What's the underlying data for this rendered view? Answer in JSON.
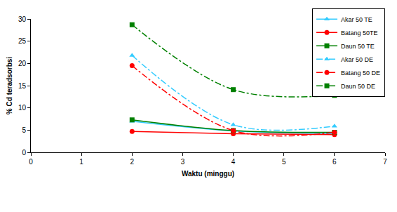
{
  "chart_data": {
    "type": "line",
    "x_label": "Waktu (minggu)",
    "y_label": "% Cd teradsorbsi",
    "xlim": [
      0,
      7
    ],
    "xticks": [
      0,
      1,
      2,
      3,
      4,
      5,
      6,
      7
    ],
    "ylim": [
      0,
      30
    ],
    "yticks": [
      0,
      5,
      10,
      15,
      20,
      25,
      30
    ],
    "grid": false,
    "legend": "top right",
    "x": [
      2,
      4,
      6
    ],
    "series": [
      {
        "name": "Akar 50 TE",
        "color": "#33ccff",
        "marker": "triangle",
        "line_style": "solid",
        "values": [
          7.0,
          4.8,
          4.2
        ]
      },
      {
        "name": "Batang 50TE",
        "color": "#ff0000",
        "marker": "circle",
        "line_style": "solid",
        "values": [
          4.7,
          4.2,
          4.0
        ]
      },
      {
        "name": "Daun 50 TE",
        "color": "#008000",
        "marker": "square",
        "line_style": "solid",
        "values": [
          7.3,
          4.9,
          4.5
        ]
      },
      {
        "name": "Akar 50 DE",
        "color": "#33ccff",
        "marker": "triangle",
        "line_style": "dashdot",
        "values": [
          21.8,
          6.2,
          5.9
        ]
      },
      {
        "name": "Batang 50 DE",
        "color": "#ff0000",
        "marker": "circle",
        "line_style": "dashdot",
        "values": [
          19.5,
          4.9,
          4.5
        ]
      },
      {
        "name": "Daun 50 DE",
        "color": "#008000",
        "marker": "square",
        "line_style": "dashdot",
        "values": [
          28.7,
          14.1,
          12.8
        ]
      }
    ]
  }
}
